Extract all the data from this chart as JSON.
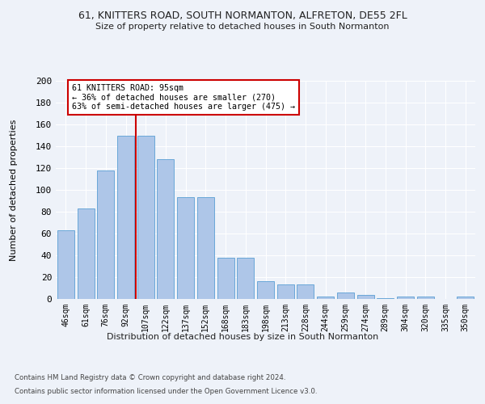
{
  "title1": "61, KNITTERS ROAD, SOUTH NORMANTON, ALFRETON, DE55 2FL",
  "title2": "Size of property relative to detached houses in South Normanton",
  "xlabel": "Distribution of detached houses by size in South Normanton",
  "ylabel": "Number of detached properties",
  "footer1": "Contains HM Land Registry data © Crown copyright and database right 2024.",
  "footer2": "Contains public sector information licensed under the Open Government Licence v3.0.",
  "annotation_line1": "61 KNITTERS ROAD: 95sqm",
  "annotation_line2": "← 36% of detached houses are smaller (270)",
  "annotation_line3": "63% of semi-detached houses are larger (475) →",
  "bar_labels": [
    "46sqm",
    "61sqm",
    "76sqm",
    "92sqm",
    "107sqm",
    "122sqm",
    "137sqm",
    "152sqm",
    "168sqm",
    "183sqm",
    "198sqm",
    "213sqm",
    "228sqm",
    "244sqm",
    "259sqm",
    "274sqm",
    "289sqm",
    "304sqm",
    "320sqm",
    "335sqm",
    "350sqm"
  ],
  "bar_values": [
    63,
    83,
    118,
    150,
    150,
    128,
    93,
    93,
    38,
    38,
    16,
    13,
    13,
    2,
    6,
    4,
    1,
    2,
    2,
    0,
    2
  ],
  "bar_color": "#aec6e8",
  "bar_edge_color": "#5a9fd4",
  "vline_color": "#cc0000",
  "vline_x": 3.5,
  "ylim": [
    0,
    200
  ],
  "yticks": [
    0,
    20,
    40,
    60,
    80,
    100,
    120,
    140,
    160,
    180,
    200
  ],
  "bg_color": "#eef2f9",
  "annotation_box_color": "#ffffff",
  "annotation_box_edge": "#cc0000",
  "grid_color": "#ffffff"
}
